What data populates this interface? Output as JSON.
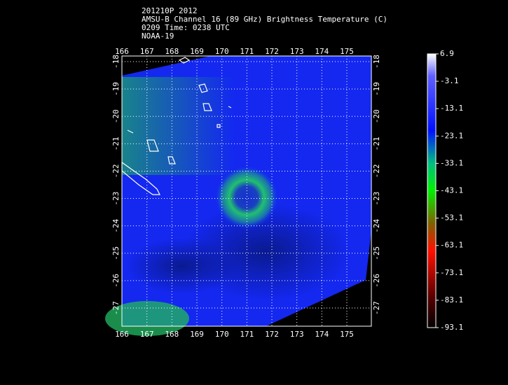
{
  "header": {
    "lines": [
      "201210P 2012",
      "AMSU-B Channel 16 (89 GHz) Brightness Temperature (C)",
      "0209 Time: 0238 UTC",
      "NOAA-19"
    ]
  },
  "map": {
    "lon_ticks": [
      166,
      167,
      168,
      169,
      170,
      171,
      172,
      173,
      174,
      175
    ],
    "lat_ticks": [
      -18,
      -19,
      -20,
      -21,
      -22,
      -23,
      -24,
      -25,
      -26,
      -27
    ]
  },
  "colorbar": {
    "ticks": [
      6.9,
      -3.1,
      -13.1,
      -23.1,
      -33.1,
      -43.1,
      -53.1,
      -63.1,
      -73.1,
      -83.1,
      -93.1
    ]
  }
}
